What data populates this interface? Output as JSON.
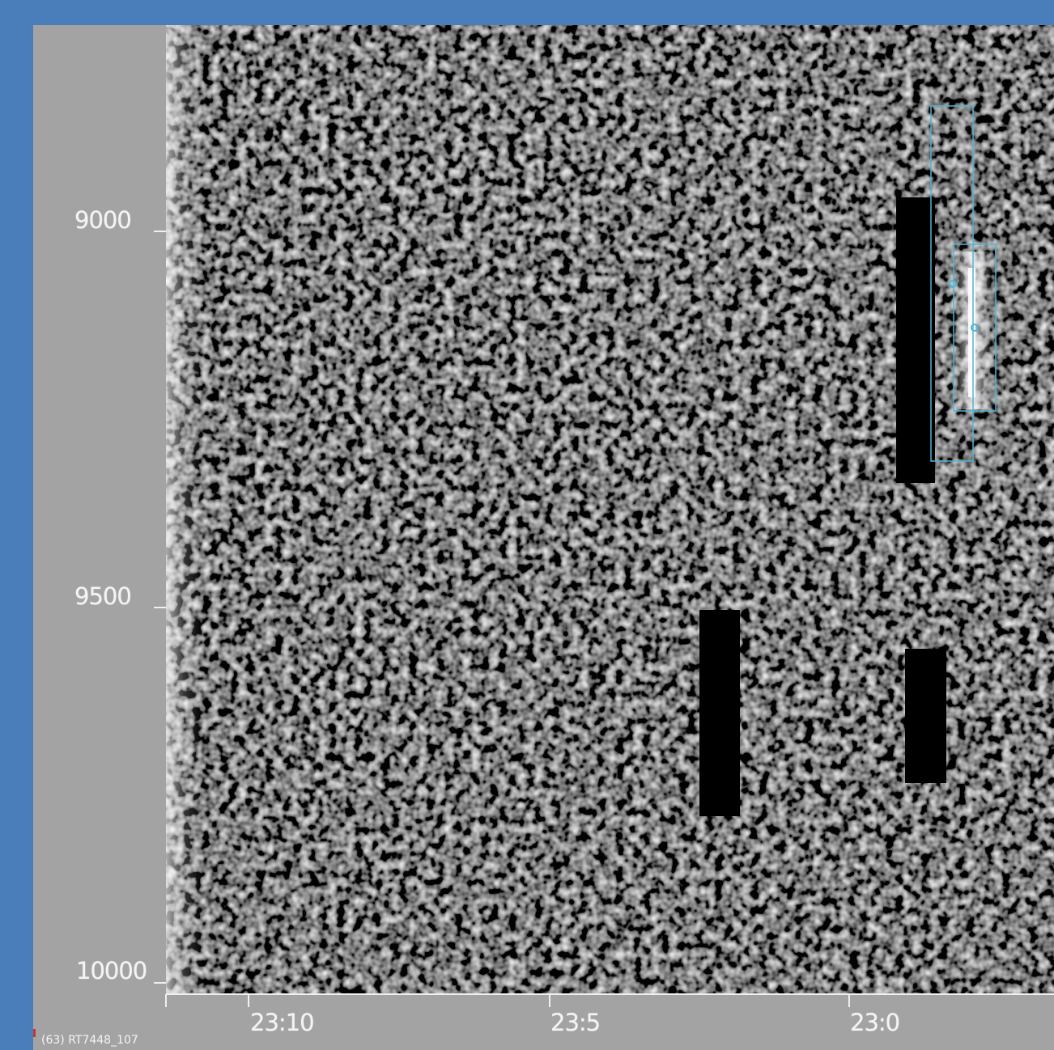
{
  "colors": {
    "frame": "#4a7ebb",
    "panel": "#a3a3a3",
    "roi_box": "#4fb4d4",
    "mask": "#000000"
  },
  "y_axis": {
    "ticks": [
      "9000",
      "9500",
      "10000"
    ]
  },
  "x_axis": {
    "ticks": [
      "23:10",
      "23:5",
      "23:0"
    ]
  },
  "caption": "(63) RT7448_107",
  "image": {
    "description_type": "grayscale noise field with masked regions",
    "masked_regions": 3,
    "selection_boxes": 2,
    "markers": 2
  }
}
